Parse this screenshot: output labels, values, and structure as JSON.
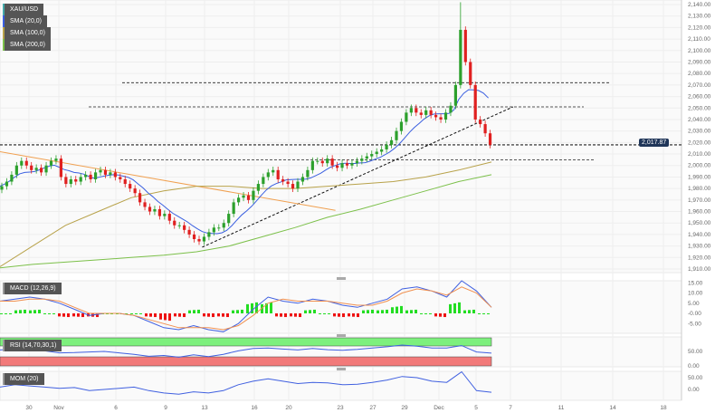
{
  "legend": {
    "symbol": "XAU/USD",
    "sma20": "SMA (20,0)",
    "sma100": "SMA (100,0)",
    "sma200": "SMA (200,0)",
    "macd": "MACD (12,26,9)",
    "rsi": "RSI (14,70,30,1)",
    "mom": "MOM (20)"
  },
  "colors": {
    "up": "#2ca02c",
    "down": "#e02020",
    "sma20": "#3a5fe0",
    "sma100": "#b8a24a",
    "sma200": "#7cc04a",
    "trend": "#f0a050",
    "macd": "#4060e0",
    "signal": "#f09050",
    "histUp": "#22dd22",
    "histDown": "#ee1111",
    "rsiHigh": "#7df07d",
    "rsiLow": "#f27a7a"
  },
  "current_price": "2,017.87",
  "price_axis": [
    "2,140.00",
    "2,130.00",
    "2,120.00",
    "2,110.00",
    "2,100.00",
    "2,090.00",
    "2,080.00",
    "2,070.00",
    "2,060.00",
    "2,050.00",
    "2,040.00",
    "2,030.00",
    "2,020.00",
    "2,010.00",
    "2,000.00",
    "1,990.00",
    "1,980.00",
    "1,970.00",
    "1,960.00",
    "1,950.00",
    "1,940.00",
    "1,930.00",
    "1,920.00",
    "1,910.00"
  ],
  "macd_axis": [
    "15.00",
    "10.00",
    "5.00",
    "-0.00",
    "-5.00"
  ],
  "rsi_axis": [
    "50.00",
    "0.00"
  ],
  "mom_axis": [
    "50.00",
    "0.00"
  ],
  "date_axis": [
    "30",
    "Nov",
    "6",
    "9",
    "13",
    "16",
    "20",
    "23",
    "27",
    "29",
    "Dec",
    "5",
    "7",
    "11",
    "14",
    "18"
  ],
  "chart_data": {
    "type": "candlestick",
    "ylim": [
      1910,
      2140
    ],
    "closes": [
      1982,
      1986,
      1992,
      2000,
      2004,
      2000,
      1996,
      1998,
      1994,
      2000,
      2004,
      2006,
      1990,
      1984,
      1988,
      1986,
      1990,
      1992,
      1988,
      1994,
      1996,
      1992,
      1994,
      1990,
      1988,
      1984,
      1980,
      1976,
      1968,
      1964,
      1960,
      1962,
      1956,
      1958,
      1952,
      1948,
      1948,
      1944,
      1940,
      1936,
      1934,
      1938,
      1942,
      1946,
      1946,
      1950,
      1958,
      1968,
      1972,
      1974,
      1970,
      1978,
      1984,
      1990,
      1994,
      1996,
      1988,
      1986,
      1984,
      1980,
      1986,
      1990,
      1996,
      2004,
      2004,
      2002,
      2006,
      2000,
      1998,
      2002,
      2000,
      2002,
      2004,
      2006,
      2008,
      2010,
      2012,
      2014,
      2018,
      2022,
      2030,
      2038,
      2046,
      2050,
      2046,
      2044,
      2048,
      2044,
      2042,
      2040,
      2046,
      2052,
      2070,
      2118,
      2090,
      2070,
      2040,
      2036,
      2028,
      2018
    ],
    "spike_high": 2142,
    "sma100": [
      1912,
      1930,
      1948,
      1960,
      1972,
      1978,
      1982,
      1982,
      1980,
      1980,
      1982,
      1984,
      1986,
      1990,
      1996,
      2003
    ],
    "sma200": [
      1911,
      1914,
      1916,
      1918,
      1920,
      1922,
      1925,
      1930,
      1938,
      1946,
      1955,
      1962,
      1970,
      1978,
      1986,
      1992
    ],
    "levels": [
      2072,
      2051,
      2018,
      2005
    ],
    "trendlines": [
      {
        "from": [
          1929,
          0.41
        ],
        "to": [
          2051,
          1.04
        ],
        "style": "dashed"
      },
      {
        "from": [
          2012,
          0
        ],
        "to": [
          1961,
          0.68
        ],
        "style": "solid"
      }
    ],
    "macd": [
      6,
      7,
      8,
      7,
      5,
      2,
      -1,
      0,
      0,
      -1,
      -4,
      -7,
      -8,
      -6,
      -8,
      -9,
      -5,
      2,
      8,
      6,
      5,
      7,
      6,
      4,
      3,
      5,
      7,
      12,
      13,
      11,
      8,
      16,
      11,
      3
    ],
    "signal": [
      6,
      6,
      7,
      7,
      6,
      3,
      0,
      0,
      0,
      -1,
      -3,
      -5,
      -7,
      -7,
      -7,
      -8,
      -6,
      -1,
      5,
      7,
      6,
      6,
      6,
      5,
      4,
      4,
      6,
      10,
      12,
      11,
      9,
      13,
      10,
      3
    ],
    "rsi": [
      55,
      58,
      54,
      52,
      45,
      46,
      48,
      50,
      45,
      40,
      33,
      36,
      30,
      38,
      32,
      40,
      52,
      60,
      62,
      58,
      55,
      60,
      56,
      54,
      57,
      62,
      66,
      72,
      68,
      62,
      62,
      70,
      48,
      44
    ],
    "mom": [
      10,
      20,
      15,
      10,
      5,
      8,
      -5,
      0,
      5,
      10,
      -5,
      -15,
      -20,
      -10,
      -15,
      -5,
      20,
      35,
      45,
      35,
      25,
      30,
      28,
      20,
      22,
      30,
      40,
      55,
      50,
      35,
      30,
      75,
      -5,
      -12
    ]
  }
}
